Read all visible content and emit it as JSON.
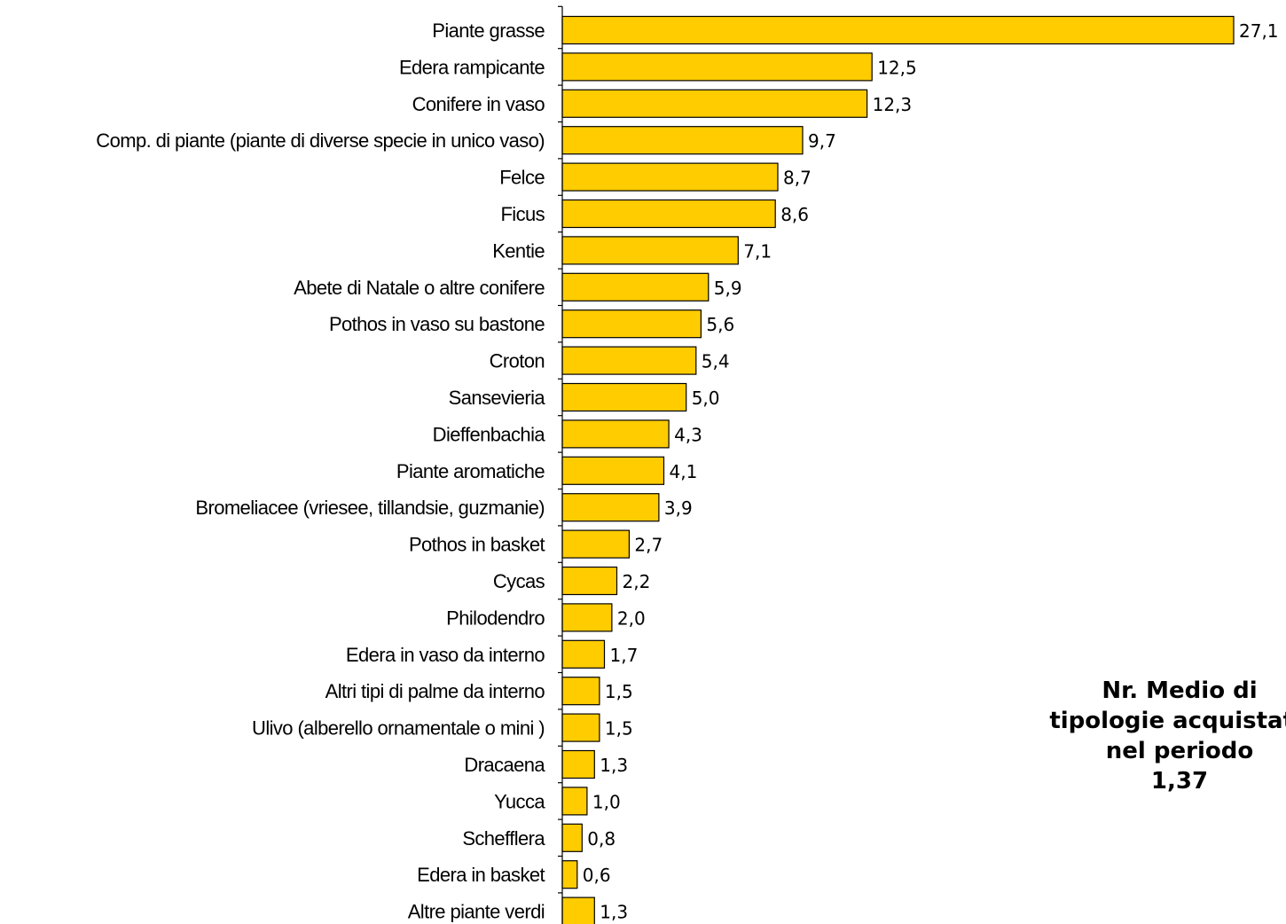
{
  "chart_data": {
    "type": "bar",
    "orientation": "horizontal",
    "categories": [
      "Piante grasse",
      "Edera rampicante",
      "Conifere in vaso",
      "Comp. di piante (piante di diverse specie in unico vaso)",
      "Felce",
      "Ficus",
      "Kentie",
      "Abete di Natale o altre conifere",
      "Pothos in vaso su bastone",
      "Croton",
      "Sansevieria",
      "Dieffenbachia",
      "Piante aromatiche",
      "Bromeliacee (vriesee, tillandsie, guzmanie)",
      "Pothos in basket",
      "Cycas",
      "Philodendro",
      "Edera in vaso da interno",
      "Altri tipi di palme da interno",
      "Ulivo (alberello ornamentale o mini )",
      "Dracaena",
      "Yucca",
      "Schefflera",
      "Edera in basket",
      "Altre piante verdi"
    ],
    "values": [
      27.1,
      12.5,
      12.3,
      9.7,
      8.7,
      8.6,
      7.1,
      5.9,
      5.6,
      5.4,
      5.0,
      4.3,
      4.1,
      3.9,
      2.7,
      2.2,
      2.0,
      1.7,
      1.5,
      1.5,
      1.3,
      1.0,
      0.8,
      0.6,
      1.3
    ],
    "value_labels": [
      "27,1",
      "12,5",
      "12,3",
      "9,7",
      "8,7",
      "8,6",
      "7,1",
      "5,9",
      "5,6",
      "5,4",
      "5,0",
      "4,3",
      "4,1",
      "3,9",
      "2,7",
      "2,2",
      "2,0",
      "1,7",
      "1,5",
      "1,5",
      "1,3",
      "1,0",
      "0,8",
      "0,6",
      "1,3"
    ],
    "xlim": [
      0,
      27.1
    ],
    "grid": false,
    "legend": "none",
    "bar_color": "#FFCC00",
    "bar_edge_color": "#000000"
  },
  "summary": {
    "line1": "Nr. Medio di",
    "line2": "tipologie acquistate",
    "line3": "nel periodo",
    "value": "1,37"
  }
}
